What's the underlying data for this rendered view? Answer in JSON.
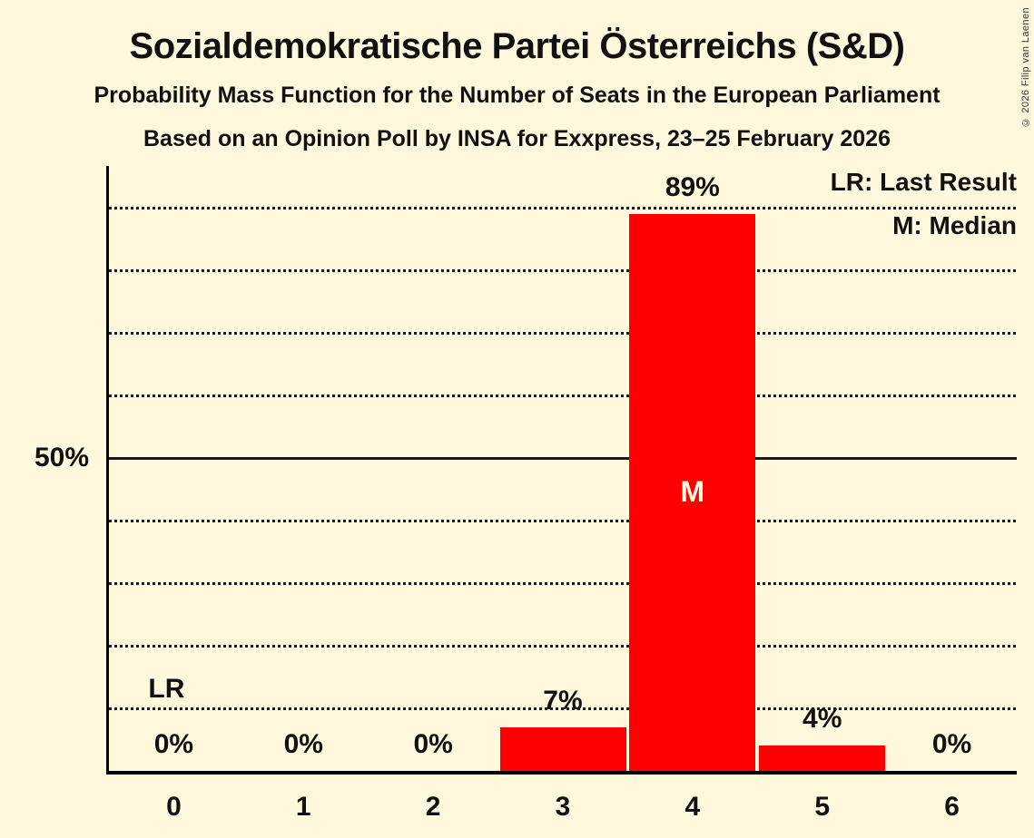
{
  "header": {
    "title": "Sozialdemokratische Partei Österreichs (S&D)",
    "subtitle1": "Probability Mass Function for the Number of Seats in the European Parliament",
    "subtitle2": "Based on an Opinion Poll by INSA for Exxpress, 23–25 February 2026",
    "copyright": "© 2026 Filip van Laenen"
  },
  "legend": {
    "lr": "LR: Last Result",
    "m": "M: Median"
  },
  "axis": {
    "y_tick_label": "50%",
    "y_tick_value": 50
  },
  "annotations": {
    "last_result_label": "LR",
    "last_result_seats": 0,
    "median_label": "M",
    "median_seats": 4
  },
  "colors": {
    "background": "#FFF8DC",
    "bar": "#FF0000",
    "text": "#111111",
    "median_text": "#FFF8DC"
  },
  "chart_data": {
    "type": "bar",
    "title": "Sozialdemokratische Partei Österreichs (S&D) — Probability Mass Function for the Number of Seats in the European Parliament",
    "categories": [
      "0",
      "1",
      "2",
      "3",
      "4",
      "5",
      "6"
    ],
    "values": [
      0,
      0,
      0,
      7,
      89,
      4,
      0
    ],
    "value_labels": [
      "0%",
      "0%",
      "0%",
      "7%",
      "89%",
      "4%",
      "0%"
    ],
    "xlabel": "",
    "ylabel": "",
    "ylim": [
      0,
      96.7
    ],
    "dotted_gridlines_pct": [
      10,
      20,
      30,
      40,
      60,
      70,
      80,
      90
    ],
    "solid_gridline_pct": 50,
    "legend_position": "top-right",
    "grid": "horizontal dotted every 10%, solid line at 50%"
  }
}
